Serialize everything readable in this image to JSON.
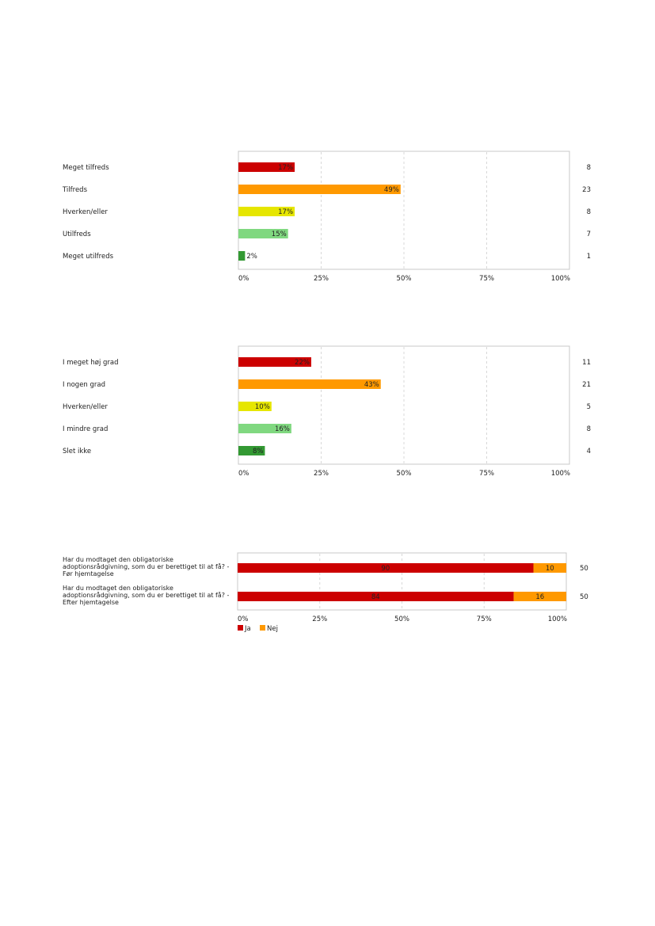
{
  "colors": {
    "meget_tilfreds": "#cc0000",
    "tilfreds": "#ff9900",
    "hverken": "#e6e600",
    "utilfreds": "#80d880",
    "meget_utilfreds": "#339933",
    "ja": "#cc0000",
    "nej": "#ff9900"
  },
  "chart_data": [
    {
      "type": "bar",
      "orientation": "horizontal",
      "categories": [
        "Meget tilfreds",
        "Tilfreds",
        "Hverken/eller",
        "Utilfreds",
        "Meget utilfreds"
      ],
      "values": [
        17,
        49,
        17,
        15,
        2
      ],
      "value_labels": [
        "17%",
        "49%",
        "17%",
        "15%",
        "2%"
      ],
      "counts": [
        "8",
        "23",
        "8",
        "7",
        "1"
      ],
      "bar_colors": [
        "#cc0000",
        "#ff9900",
        "#e6e600",
        "#80d880",
        "#339933"
      ],
      "xlim": [
        0,
        100
      ],
      "xticks": [
        "0%",
        "25%",
        "50%",
        "75%",
        "100%"
      ],
      "grid": "vertical dashed"
    },
    {
      "type": "bar",
      "orientation": "horizontal",
      "categories": [
        "I meget høj grad",
        "I nogen grad",
        "Hverken/eller",
        "I mindre grad",
        "Slet ikke"
      ],
      "values": [
        22,
        43,
        10,
        16,
        8
      ],
      "value_labels": [
        "22%",
        "43%",
        "10%",
        "16%",
        "8%"
      ],
      "counts": [
        "11",
        "21",
        "5",
        "8",
        "4"
      ],
      "bar_colors": [
        "#cc0000",
        "#ff9900",
        "#e6e600",
        "#80d880",
        "#339933"
      ],
      "xlim": [
        0,
        100
      ],
      "xticks": [
        "0%",
        "25%",
        "50%",
        "75%",
        "100%"
      ],
      "grid": "vertical dashed"
    },
    {
      "type": "bar",
      "orientation": "horizontal",
      "stacked": true,
      "categories": [
        [
          "Har du modtaget den obligatoriske",
          "adoptionsrådgivning, som du er berettiget til at få? -",
          "Før hjemtagelse"
        ],
        [
          "Har du modtaget den obligatoriske",
          "adoptionsrådgivning, som du er berettiget til at få? -",
          "Efter hjemtagelse"
        ]
      ],
      "series": [
        {
          "name": "Ja",
          "values": [
            90,
            84
          ],
          "labels": [
            "90",
            "84"
          ],
          "color": "#cc0000"
        },
        {
          "name": "Nej",
          "values": [
            10,
            16
          ],
          "labels": [
            "10",
            "16"
          ],
          "color": "#ff9900"
        }
      ],
      "counts": [
        "50",
        "50"
      ],
      "xlim": [
        0,
        100
      ],
      "xticks": [
        "0%",
        "25%",
        "50%",
        "75%",
        "100%"
      ],
      "grid": "vertical dashed",
      "legend": "bottom-left"
    }
  ]
}
